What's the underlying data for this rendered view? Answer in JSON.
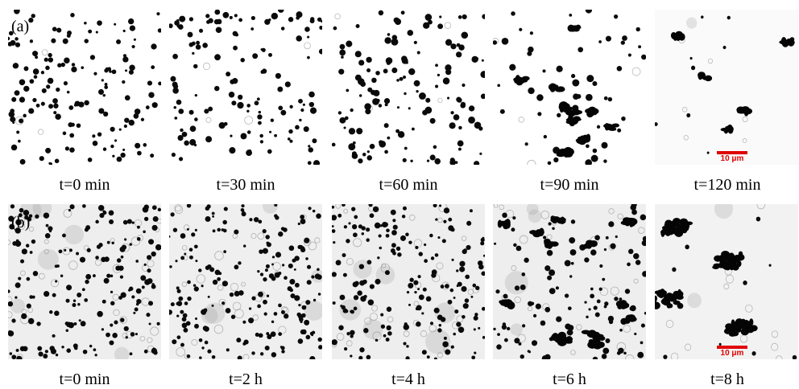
{
  "row_a": {
    "label": "(a)",
    "captions": [
      "t=0 min",
      "t=30 min",
      "t=60 min",
      "t=90 min",
      "t=120 min"
    ],
    "scale_bar": "10 μm"
  },
  "row_b": {
    "label": "(b)",
    "captions": [
      "t=0 min",
      "t=2 h",
      "t=4 h",
      "t=6 h",
      "t=8 h"
    ],
    "scale_bar": "10 μm"
  },
  "colors": {
    "particle": "#000000",
    "background_a": "#ffffff",
    "background_b": "#efefef",
    "scale_bar": "#e00000"
  }
}
